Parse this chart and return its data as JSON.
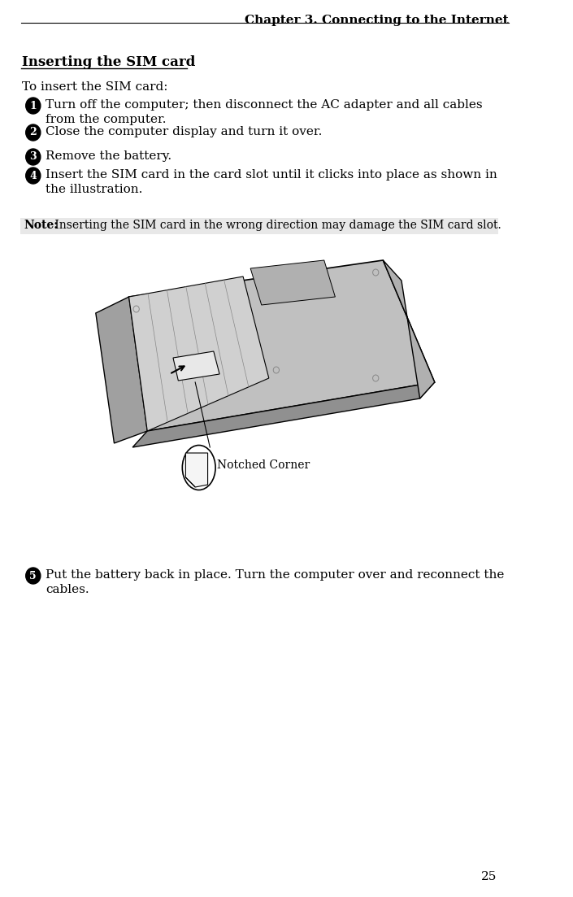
{
  "page_title": "Chapter 3. Connecting to the Internet",
  "page_number": "25",
  "section_title": "Inserting the SIM card",
  "intro_text": "To insert the SIM card:",
  "steps": [
    {
      "num": "1",
      "text": "Turn off the computer; then disconnect the AC adapter and all cables\nfrom the computer."
    },
    {
      "num": "2",
      "text": "Close the computer display and turn it over."
    },
    {
      "num": "3",
      "text": "Remove the battery."
    },
    {
      "num": "4",
      "text": "Insert the SIM card in the card slot until it clicks into place as shown in\nthe illustration."
    }
  ],
  "note_label": "Note:",
  "note_text": " Inserting the SIM card in the wrong direction may damage the SIM card slot.",
  "note_bg": "#e8e8e8",
  "step5": {
    "num": "5",
    "text": "Put the battery back in place. Turn the computer over and reconnect the\ncables."
  },
  "notched_corner_label": "Notched Corner",
  "bg_color": "#ffffff",
  "text_color": "#000000"
}
